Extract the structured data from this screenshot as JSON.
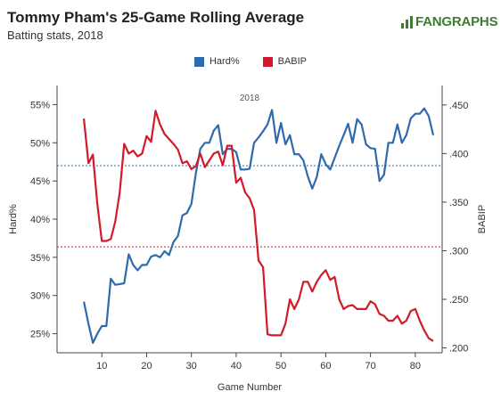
{
  "title": "Tommy Pham's 25-Game Rolling Average",
  "subtitle": "Batting stats, 2018",
  "logo_text": "FANGRAPHS",
  "colors": {
    "hard": "#2e6aad",
    "babip": "#d21a2a",
    "logo": "#3f7b33"
  },
  "chart_data": {
    "type": "line",
    "title": "Tommy Pham's 25-Game Rolling Average",
    "subtitle": "Batting stats, 2018",
    "annotation": "2018",
    "xlabel": "Game Number",
    "ylabel_left": "Hard%",
    "ylabel_right": "BABIP",
    "xlim": [
      0,
      86
    ],
    "x_ticks": [
      10,
      20,
      30,
      40,
      50,
      60,
      70,
      80
    ],
    "x_tick_labels": [
      "10",
      "20",
      "30",
      "40",
      "50",
      "60",
      "70",
      "80"
    ],
    "ylim_left": [
      22.5,
      57.5
    ],
    "y_ticks_left": [
      25,
      30,
      35,
      40,
      45,
      50,
      55
    ],
    "y_tick_labels_left": [
      "25%",
      "30%",
      "35%",
      "40%",
      "45%",
      "50%",
      "55%"
    ],
    "ylim_right": [
      0.195,
      0.47
    ],
    "y_ticks_right": [
      0.2,
      0.25,
      0.3,
      0.35,
      0.4,
      0.45
    ],
    "y_tick_labels_right": [
      ".200",
      ".250",
      ".300",
      ".350",
      ".400",
      ".450"
    ],
    "legend": "top-center",
    "grid": false,
    "reference_lines": [
      {
        "series": "Hard%",
        "axis": "left",
        "value": 47.0
      },
      {
        "series": "BABIP",
        "axis": "right",
        "value": 0.304
      }
    ],
    "series": [
      {
        "name": "Hard%",
        "axis": "left",
        "color": "#2e6aad",
        "x": [
          6,
          7,
          8,
          9,
          10,
          11,
          12,
          13,
          14,
          15,
          16,
          17,
          18,
          19,
          20,
          21,
          22,
          23,
          24,
          25,
          26,
          27,
          28,
          29,
          30,
          31,
          32,
          33,
          34,
          35,
          36,
          37,
          38,
          39,
          40,
          41,
          42,
          43,
          44,
          45,
          46,
          47,
          48,
          49,
          50,
          51,
          52,
          53,
          54,
          55,
          56,
          57,
          58,
          59,
          60,
          61,
          62,
          63,
          64,
          65,
          66,
          67,
          68,
          69,
          70,
          71,
          72,
          73,
          74,
          75,
          76,
          77,
          78,
          79,
          80,
          81,
          82,
          83,
          84
        ],
        "values": [
          29.2,
          26.3,
          23.8,
          25.0,
          26.0,
          26.0,
          32.2,
          31.4,
          31.5,
          31.6,
          35.4,
          34.0,
          33.3,
          34.0,
          34.0,
          35.1,
          35.3,
          35.0,
          35.8,
          35.3,
          37.0,
          37.8,
          40.5,
          40.8,
          42.0,
          46.0,
          49.2,
          50.0,
          50.0,
          51.6,
          52.3,
          48.5,
          49.2,
          49.2,
          48.8,
          46.5,
          46.5,
          46.6,
          50.0,
          50.7,
          51.5,
          52.4,
          54.3,
          50.0,
          52.6,
          49.8,
          51.0,
          48.5,
          48.5,
          47.7,
          45.6,
          44.0,
          45.5,
          48.5,
          47.2,
          46.5,
          48.0,
          49.6,
          51.0,
          52.5,
          50.0,
          53.1,
          52.4,
          49.8,
          49.3,
          49.2,
          45.0,
          45.8,
          50.0,
          50.0,
          52.4,
          50.0,
          51.0,
          53.2,
          53.8,
          53.8,
          54.5,
          53.5,
          51.0
        ]
      },
      {
        "name": "BABIP",
        "axis": "right",
        "color": "#d21a2a",
        "x": [
          6,
          7,
          8,
          9,
          10,
          11,
          12,
          13,
          14,
          15,
          16,
          17,
          18,
          19,
          20,
          21,
          22,
          23,
          24,
          25,
          26,
          27,
          28,
          29,
          30,
          31,
          32,
          33,
          34,
          35,
          36,
          37,
          38,
          39,
          40,
          41,
          42,
          43,
          44,
          45,
          46,
          47,
          48,
          49,
          50,
          51,
          52,
          53,
          54,
          55,
          56,
          57,
          58,
          59,
          60,
          61,
          62,
          63,
          64,
          65,
          66,
          67,
          68,
          69,
          70,
          71,
          72,
          73,
          74,
          75,
          76,
          77,
          78,
          79,
          80,
          81,
          82,
          83,
          84
        ],
        "values": [
          0.436,
          0.39,
          0.399,
          0.348,
          0.31,
          0.31,
          0.312,
          0.33,
          0.36,
          0.41,
          0.4,
          0.403,
          0.397,
          0.4,
          0.418,
          0.412,
          0.444,
          0.43,
          0.42,
          0.415,
          0.41,
          0.404,
          0.39,
          0.392,
          0.384,
          0.387,
          0.4,
          0.386,
          0.393,
          0.4,
          0.402,
          0.388,
          0.408,
          0.408,
          0.37,
          0.375,
          0.36,
          0.354,
          0.342,
          0.29,
          0.283,
          0.214,
          0.213,
          0.213,
          0.213,
          0.225,
          0.25,
          0.24,
          0.25,
          0.268,
          0.268,
          0.258,
          0.268,
          0.275,
          0.28,
          0.27,
          0.273,
          0.25,
          0.24,
          0.243,
          0.244,
          0.24,
          0.24,
          0.24,
          0.248,
          0.245,
          0.235,
          0.233,
          0.228,
          0.228,
          0.233,
          0.225,
          0.228,
          0.238,
          0.24,
          0.228,
          0.218,
          0.21,
          0.207
        ]
      }
    ]
  }
}
